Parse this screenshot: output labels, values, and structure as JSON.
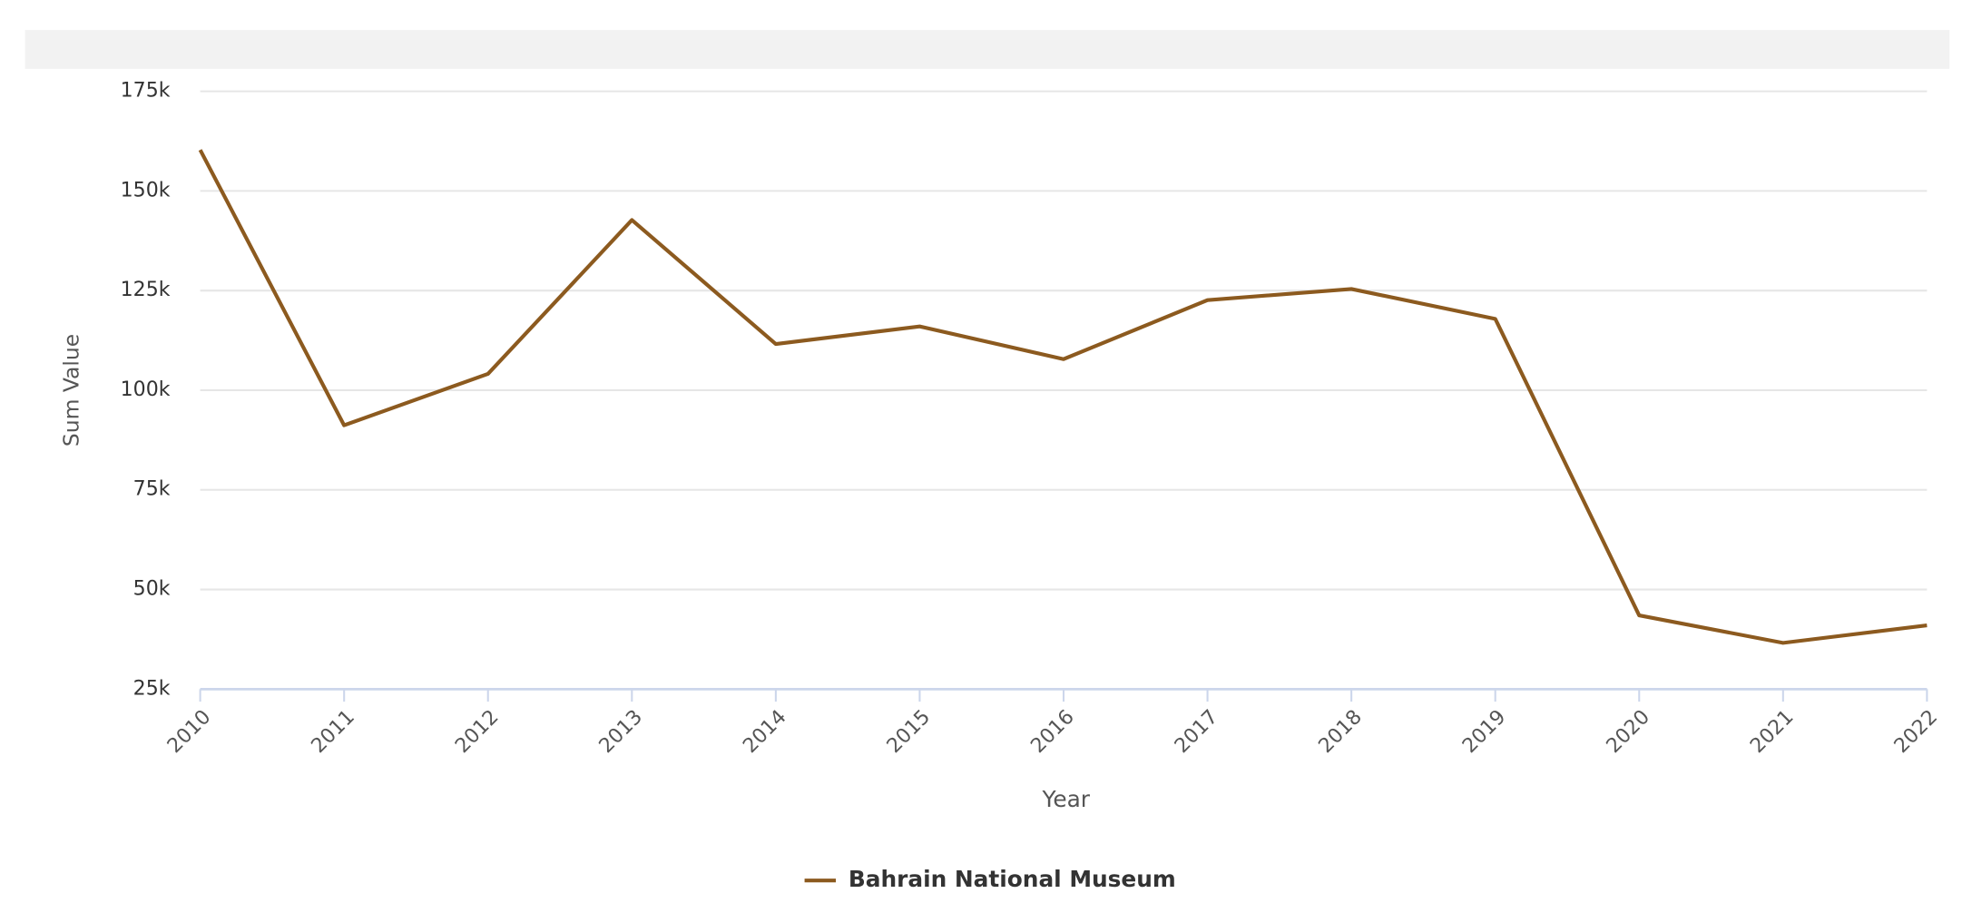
{
  "chart_data": {
    "type": "line",
    "x_label": "Year",
    "y_label": "Sum Value",
    "categories": [
      "2010",
      "2011",
      "2012",
      "2013",
      "2014",
      "2015",
      "2016",
      "2017",
      "2018",
      "2019",
      "2020",
      "2021",
      "2022"
    ],
    "series": [
      {
        "name": "Bahrain National Museum",
        "color": "#8c5a1f",
        "values": [
          160300,
          91200,
          104100,
          142700,
          111600,
          116000,
          107800,
          122600,
          125400,
          117900,
          43500,
          36600,
          41000
        ]
      }
    ],
    "ylim": [
      25000,
      175000
    ],
    "yticks": [
      {
        "value": 25000,
        "label": "25k"
      },
      {
        "value": 50000,
        "label": "50k"
      },
      {
        "value": 75000,
        "label": "75k"
      },
      {
        "value": 100000,
        "label": "100k"
      },
      {
        "value": 125000,
        "label": "125k"
      },
      {
        "value": 150000,
        "label": "150k"
      },
      {
        "value": 175000,
        "label": "175k"
      }
    ],
    "grid": true,
    "legend": "bottom"
  }
}
